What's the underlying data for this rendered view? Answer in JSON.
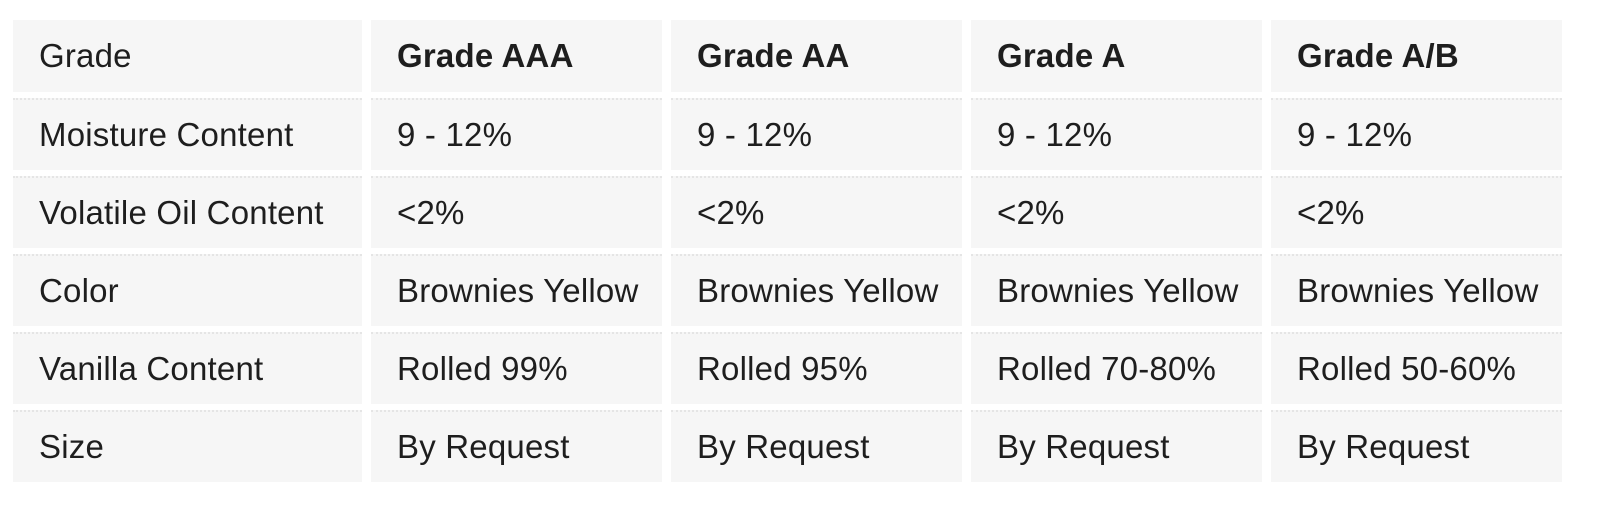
{
  "chart_data": {
    "type": "table",
    "columns": [
      "Grade",
      "Grade AAA",
      "Grade AA",
      "Grade A",
      "Grade A/B"
    ],
    "rows": [
      [
        "Moisture Content",
        "9 - 12%",
        "9 - 12%",
        "9 - 12%",
        "9 - 12%"
      ],
      [
        "Volatile Oil Content",
        "<2%",
        "<2%",
        "<2%",
        "<2%"
      ],
      [
        "Color",
        "Brownies Yellow",
        "Brownies Yellow",
        "Brownies Yellow",
        "Brownies Yellow"
      ],
      [
        "Vanilla Content",
        "Rolled 99%",
        "Rolled 95%",
        "Rolled 70-80%",
        "Rolled 50-60%"
      ],
      [
        "Size",
        "By Request",
        "By Request",
        "By Request",
        "By Request"
      ]
    ],
    "layout": {
      "grid": "off",
      "header_style": "bold"
    }
  },
  "style": {
    "cell_background": "#f6f6f6",
    "page_background": "#ffffff",
    "text_color": "#1e1e1e",
    "row_divider_color": "#e5e5e5"
  }
}
